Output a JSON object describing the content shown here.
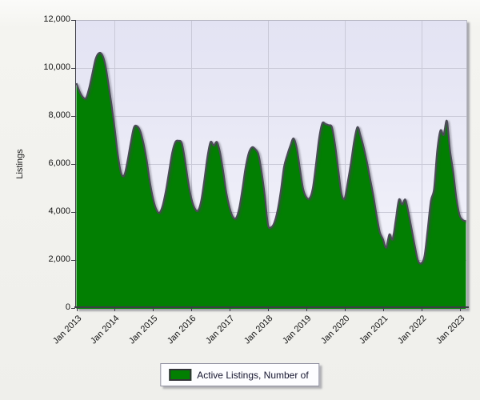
{
  "chart": {
    "y_axis_title": "Listings",
    "y_tick_labels": [
      "12,000",
      "10,000",
      "8,000",
      "6,000",
      "4,000",
      "2,000",
      "0"
    ],
    "x_tick_labels": [
      "Jan 2013",
      "Jan 2014",
      "Jan 2015",
      "Jan 2016",
      "Jan 2017",
      "Jan 2018",
      "Jan 2019",
      "Jan 2020",
      "Jan 2021",
      "Jan 2022",
      "Jan 2023"
    ],
    "legend": {
      "label": "Active Listings, Number of"
    },
    "colors": {
      "area_fill": "#027f02",
      "area_outline": "#4b4b57",
      "gridline": "#c9c9d7",
      "plot_bg_top": "#e3e3f3",
      "plot_bg_bottom": "#f7f7fd"
    }
  },
  "chart_data": {
    "type": "area",
    "series_name": "Active Listings, Number of",
    "frequency": "monthly",
    "x_start": "Jan 2013",
    "x_end": "Mar 2023",
    "xlabel": "",
    "ylabel": "Listings",
    "ylim": [
      0,
      12000
    ],
    "y_tick_interval": 2000,
    "grid": true,
    "legend_position": "bottom-center",
    "values": [
      9400,
      9050,
      8820,
      8780,
      9200,
      9800,
      10400,
      10650,
      10600,
      10200,
      9400,
      8500,
      7500,
      6400,
      5650,
      5570,
      6150,
      6900,
      7550,
      7610,
      7400,
      6900,
      6200,
      5300,
      4600,
      4150,
      4000,
      4300,
      4900,
      5700,
      6500,
      6950,
      7000,
      6900,
      6200,
      5300,
      4600,
      4200,
      4080,
      4450,
      5300,
      6300,
      6950,
      6800,
      6950,
      6500,
      5700,
      4800,
      4200,
      3830,
      3780,
      4200,
      5000,
      5900,
      6500,
      6730,
      6650,
      6430,
      5700,
      4700,
      3500,
      3400,
      3600,
      4100,
      4900,
      5900,
      6400,
      6800,
      7100,
      6700,
      5830,
      5000,
      4650,
      4600,
      5000,
      6000,
      7100,
      7730,
      7700,
      7650,
      7570,
      6830,
      5800,
      4800,
      4600,
      5300,
      6100,
      7000,
      7570,
      7200,
      6700,
      6100,
      5400,
      4700,
      3900,
      3200,
      2900,
      2550,
      3100,
      2900,
      3700,
      4550,
      4350,
      4550,
      4000,
      3300,
      2600,
      2000,
      1900,
      2200,
      3300,
      4500,
      5000,
      6600,
      7430,
      7250,
      7830,
      6600,
      5700,
      4600,
      3900,
      3700,
      3650
    ]
  }
}
